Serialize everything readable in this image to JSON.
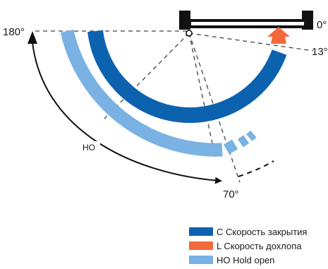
{
  "labels": {
    "angle_180": "180°",
    "angle_0": "0°",
    "angle_13": "13°",
    "angle_70": "70°",
    "ho": "HO"
  },
  "legend": [
    {
      "key": "C",
      "text": "C Скорость закрытия",
      "color": "#0d62b0"
    },
    {
      "key": "L",
      "text": "L Скорость дохлопа",
      "color": "#f26a3a"
    },
    {
      "key": "HO",
      "text": "HO Hold open",
      "color": "#79b2e3"
    }
  ],
  "colors": {
    "closing": "#0d62b0",
    "latching": "#f26a3a",
    "hold_open": "#79b2e3",
    "frame": "#111111",
    "guide": "#444444"
  }
}
